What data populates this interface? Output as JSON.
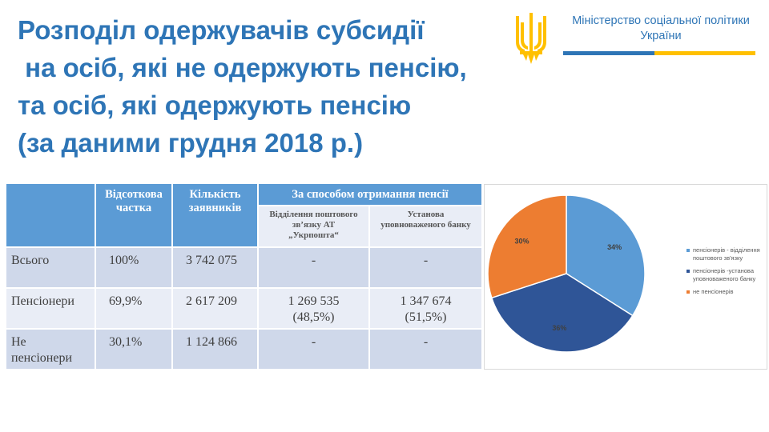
{
  "title": {
    "line1": "Розподіл одержувачів субсидії",
    "line2": " на осіб, які не одержують пенсію,",
    "line3": "та осіб, які одержують пенсію",
    "line4": "(за даними грудня 2018 р.)"
  },
  "logo": {
    "ministry_line1": "Міністерство соціальної політики",
    "ministry_line2": "України",
    "icon": "trident-icon",
    "colors": {
      "blue": "#2e75b6",
      "yellow": "#ffc000"
    }
  },
  "table": {
    "header": {
      "col_share_line1": "Відсоткова",
      "col_share_line2": "частка",
      "col_count_line1": "Кількість",
      "col_count_line2": "заявників",
      "group_label": "За способом отримання пенсії",
      "sub_post_line1": "Відділення поштового",
      "sub_post_line2": "зв’язку АТ",
      "sub_post_line3": "„Укрпошта“",
      "sub_bank_line1": "Установа",
      "sub_bank_line2": "уповноваженого банку"
    },
    "rows": [
      {
        "label_line1": "Всього",
        "label_line2": "",
        "share": "100%",
        "count": "3 742 075",
        "post_line1": "-",
        "post_line2": "",
        "bank_line1": "-",
        "bank_line2": ""
      },
      {
        "label_line1": "Пенсіонери",
        "label_line2": "",
        "share": "69,9%",
        "count": "2 617 209",
        "post_line1": "1 269 535",
        "post_line2": "(48,5%)",
        "bank_line1": "1 347 674",
        "bank_line2": "(51,5%)"
      },
      {
        "label_line1": "Не",
        "label_line2": "пенсіонери",
        "share": "30,1%",
        "count": "1 124 866",
        "post_line1": "-",
        "post_line2": "",
        "bank_line1": "-",
        "bank_line2": ""
      }
    ],
    "colors": {
      "header": "#5b9bd5",
      "row_dark": "#cfd8ea",
      "row_light": "#e9edf6"
    }
  },
  "chart_data": {
    "type": "pie",
    "slices": [
      {
        "label_line1": "пенсіонерів - відділення",
        "label_line2": "поштового зв'язку",
        "value": 34,
        "display": "34%",
        "color": "#5b9bd5"
      },
      {
        "label_line1": "пенсіонерів -установа",
        "label_line2": "уповноваженого банку",
        "value": 36,
        "display": "36%",
        "color": "#2f5597"
      },
      {
        "label_line1": "не пенсіонерів",
        "label_line2": "",
        "value": 30,
        "display": "30%",
        "color": "#ed7d31"
      }
    ],
    "legend_position": "right"
  }
}
